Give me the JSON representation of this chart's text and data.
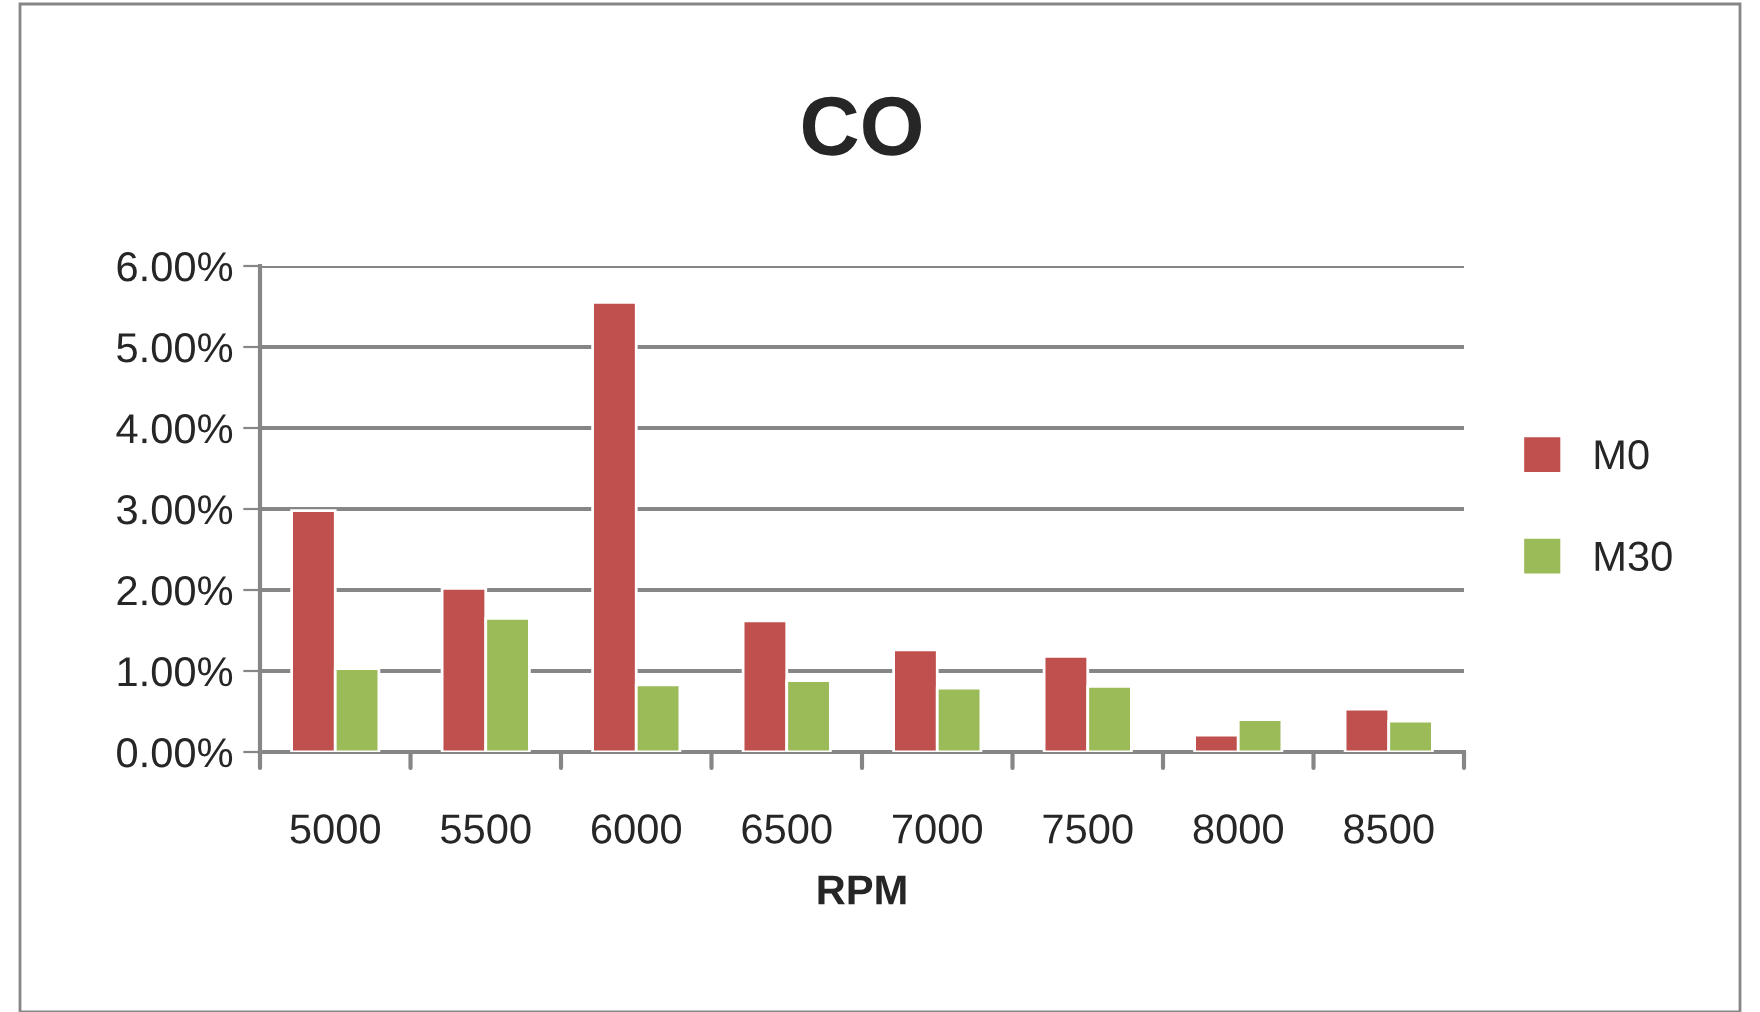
{
  "chart_data": {
    "type": "bar",
    "title": "CO",
    "xlabel": "RPM",
    "categories": [
      "5000",
      "5500",
      "6000",
      "6500",
      "7000",
      "7500",
      "8000",
      "8500"
    ],
    "series": [
      {
        "name": "M0",
        "color": "#c0504d",
        "values": [
          2.98,
          2.02,
          5.55,
          1.62,
          1.26,
          1.18,
          0.21,
          0.53
        ]
      },
      {
        "name": "M30",
        "color": "#9bbb59",
        "values": [
          1.03,
          1.65,
          0.83,
          0.88,
          0.79,
          0.81,
          0.4,
          0.38
        ]
      }
    ],
    "ylim": [
      0,
      6
    ],
    "yticks": [
      {
        "value": 0,
        "label": "0.00%"
      },
      {
        "value": 1,
        "label": "1.00%"
      },
      {
        "value": 2,
        "label": "2.00%"
      },
      {
        "value": 3,
        "label": "3.00%"
      },
      {
        "value": 4,
        "label": "4.00%"
      },
      {
        "value": 5,
        "label": "5.00%"
      },
      {
        "value": 6,
        "label": "6.00%"
      }
    ],
    "grid": "y",
    "legend": "right"
  }
}
